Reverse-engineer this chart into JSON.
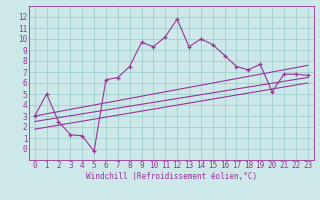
{
  "xlabel": "Windchill (Refroidissement éolien,°C)",
  "x_data": [
    0,
    1,
    2,
    3,
    4,
    5,
    6,
    7,
    8,
    9,
    10,
    11,
    12,
    13,
    14,
    15,
    16,
    17,
    18,
    19,
    20,
    21,
    22,
    23
  ],
  "y_main": [
    3,
    5,
    2.5,
    1.3,
    1.2,
    -0.2,
    6.3,
    6.5,
    7.5,
    9.7,
    9.3,
    10.2,
    11.8,
    9.3,
    10.0,
    9.5,
    8.5,
    7.5,
    7.2,
    7.7,
    5.2,
    6.8,
    6.8,
    6.7
  ],
  "line1_x": [
    0,
    23
  ],
  "line1_y": [
    3.0,
    7.6
  ],
  "line2_x": [
    0,
    23
  ],
  "line2_y": [
    2.5,
    6.5
  ],
  "line3_x": [
    0,
    23
  ],
  "line3_y": [
    1.8,
    6.0
  ],
  "main_color": "#993399",
  "bg_color": "#cce8e8",
  "grid_color": "#99cccc",
  "text_color": "#993399",
  "xlim": [
    -0.5,
    23.5
  ],
  "ylim": [
    -1,
    13
  ],
  "yticks": [
    0,
    1,
    2,
    3,
    4,
    5,
    6,
    7,
    8,
    9,
    10,
    11,
    12
  ],
  "xticks": [
    0,
    1,
    2,
    3,
    4,
    5,
    6,
    7,
    8,
    9,
    10,
    11,
    12,
    13,
    14,
    15,
    16,
    17,
    18,
    19,
    20,
    21,
    22,
    23
  ],
  "xlabel_fontsize": 5.5,
  "tick_fontsize": 5.5
}
